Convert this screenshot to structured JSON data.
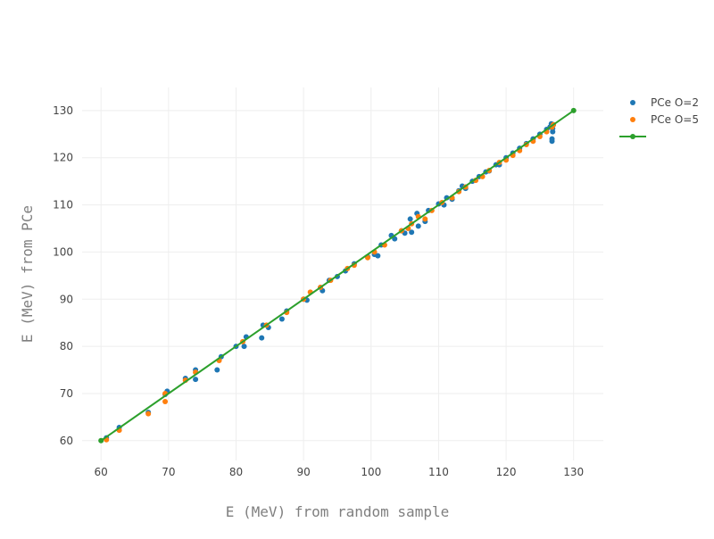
{
  "chart_data": {
    "type": "scatter",
    "xlabel": "E (MeV) from random sample",
    "ylabel": "E (MeV) from PCe",
    "xlim": [
      57.2,
      134.4
    ],
    "ylim": [
      55.8,
      134.9
    ],
    "xticks": [
      60,
      70,
      80,
      90,
      100,
      110,
      120,
      130
    ],
    "yticks": [
      60,
      70,
      80,
      90,
      100,
      110,
      120,
      130
    ],
    "grid": true,
    "legend": "top-right",
    "series": [
      {
        "name": "PCe O=2",
        "color": "#1f77b4",
        "mode": "markers",
        "x": [
          60.8,
          62.7,
          67,
          69.5,
          69.8,
          72.5,
          74,
          74,
          77.2,
          77.8,
          80,
          81.2,
          81.5,
          83.8,
          84,
          84.8,
          86.8,
          87.5,
          90,
          90.5,
          92.5,
          92.8,
          93.8,
          95,
          96.2,
          97.5,
          99.5,
          100.5,
          101,
          101.5,
          103,
          103.5,
          104.5,
          105,
          105.8,
          106,
          106.8,
          107,
          108,
          108.5,
          110,
          110.8,
          111.2,
          112,
          113,
          113.5,
          114,
          115,
          116,
          117,
          117.5,
          118.5,
          119,
          120,
          121,
          122,
          123,
          124,
          125,
          126,
          126.5,
          126.7,
          126.8,
          126.8,
          126.9,
          126.9,
          127
        ],
        "values": [
          60.6,
          62.8,
          66,
          69.8,
          70.5,
          73.2,
          75,
          73,
          75,
          77.8,
          80,
          80,
          82,
          81.8,
          84.5,
          84,
          85.8,
          87.5,
          90,
          89.8,
          92.5,
          91.8,
          94,
          94.8,
          96,
          97.5,
          99,
          99.5,
          99.2,
          101.5,
          103.5,
          102.8,
          104.5,
          104,
          107,
          104.2,
          108.2,
          105.5,
          106.5,
          108.8,
          110.2,
          110,
          111.5,
          111.2,
          113,
          114,
          113.5,
          115,
          116,
          117,
          117.2,
          118.5,
          118.5,
          120,
          121,
          122,
          123,
          124,
          125,
          126,
          126.5,
          127.2,
          123.5,
          124,
          125.5,
          126.2,
          127
        ]
      },
      {
        "name": "PCe O=5",
        "color": "#ff7f0e",
        "mode": "markers",
        "x": [
          60.8,
          62.7,
          67,
          69.5,
          69.5,
          72.5,
          74,
          77.5,
          81,
          84.5,
          87.5,
          90,
          91,
          92.5,
          94,
          96.5,
          97.5,
          99.5,
          100.5,
          102,
          104.5,
          105.5,
          106,
          107,
          108,
          109,
          110.5,
          112,
          113,
          114,
          115.5,
          116.5,
          117.5,
          119,
          120,
          121,
          122,
          123,
          124,
          125,
          126,
          126.8,
          127
        ],
        "values": [
          60.2,
          62.2,
          65.7,
          68.3,
          70,
          72.8,
          74.5,
          77,
          81,
          84.5,
          87.2,
          90,
          91.5,
          92.5,
          94,
          96.5,
          97.2,
          98.8,
          100,
          101.5,
          104.5,
          105,
          106,
          107.5,
          107,
          108.8,
          110.5,
          111.5,
          112.8,
          113.8,
          115.2,
          116,
          117.3,
          119,
          119.5,
          120.5,
          121.5,
          122.8,
          123.5,
          124.5,
          125.5,
          126.5,
          127
        ]
      },
      {
        "color": "#2ca02c",
        "mode": "lines+markers",
        "x": [
          60,
          130
        ],
        "values": [
          60,
          130
        ]
      }
    ]
  }
}
